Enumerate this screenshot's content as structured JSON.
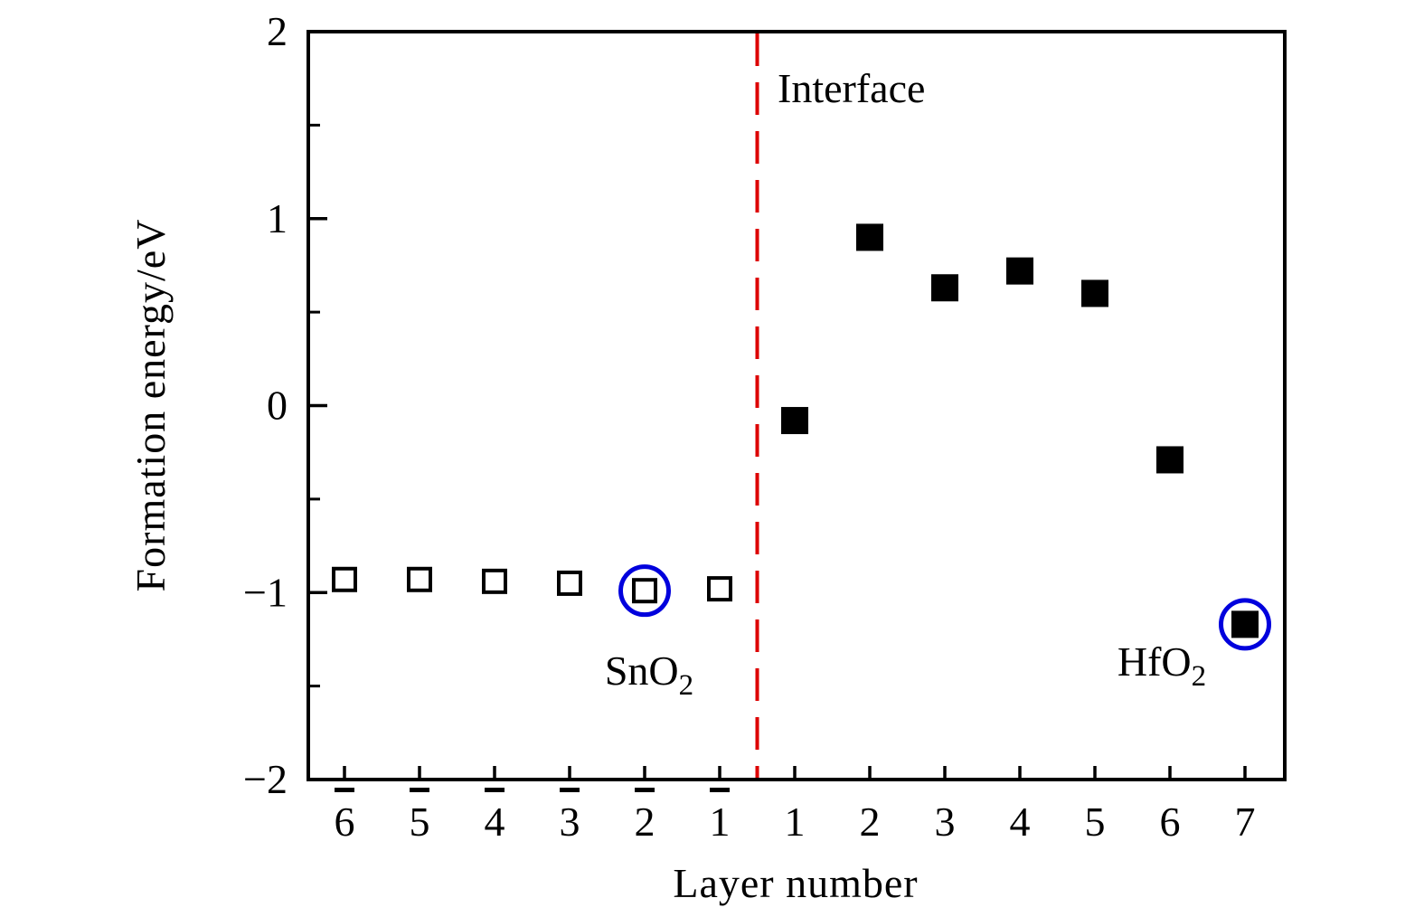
{
  "chart_data": {
    "type": "scatter",
    "title": "",
    "xlabel": "Layer number",
    "ylabel": "Formation energy/eV",
    "ylim": [
      -2,
      2
    ],
    "xlim_layers": [
      -6,
      7
    ],
    "grid": "off",
    "legend": "none",
    "axis_color": "#000000",
    "y_major_ticks": [
      {
        "value": 2,
        "label": "2"
      },
      {
        "value": 1,
        "label": "1"
      },
      {
        "value": 0,
        "label": "0"
      },
      {
        "value": -1,
        "label": "−1"
      },
      {
        "value": -2,
        "label": "−2"
      }
    ],
    "y_minor_ticks": [
      1.5,
      0.5,
      -0.5,
      -1.5
    ],
    "x_ticks": [
      {
        "layer": -6,
        "label": "6",
        "overbar": true
      },
      {
        "layer": -5,
        "label": "5",
        "overbar": true
      },
      {
        "layer": -4,
        "label": "4",
        "overbar": true
      },
      {
        "layer": -3,
        "label": "3",
        "overbar": true
      },
      {
        "layer": -2,
        "label": "2",
        "overbar": true
      },
      {
        "layer": -1,
        "label": "1",
        "overbar": true
      },
      {
        "layer": 1,
        "label": "1",
        "overbar": false
      },
      {
        "layer": 2,
        "label": "2",
        "overbar": false
      },
      {
        "layer": 3,
        "label": "3",
        "overbar": false
      },
      {
        "layer": 4,
        "label": "4",
        "overbar": false
      },
      {
        "layer": 5,
        "label": "5",
        "overbar": false
      },
      {
        "layer": 6,
        "label": "6",
        "overbar": false
      },
      {
        "layer": 7,
        "label": "7",
        "overbar": false
      }
    ],
    "interface_line": {
      "label": "Interface",
      "color": "#dd0000",
      "x_position": 0,
      "style": "dashed"
    },
    "highlight_color": "#0000dd",
    "series": [
      {
        "name": "SnO2",
        "label_main": "SnO",
        "label_sub": "2",
        "marker": "open-square",
        "marker_color": "#000000",
        "points": [
          {
            "layer": -6,
            "energy": -0.93
          },
          {
            "layer": -5,
            "energy": -0.93
          },
          {
            "layer": -4,
            "energy": -0.94
          },
          {
            "layer": -3,
            "energy": -0.95
          },
          {
            "layer": -2,
            "energy": -0.99
          },
          {
            "layer": -1,
            "energy": -0.98
          }
        ],
        "highlighted_layer": -2
      },
      {
        "name": "HfO2",
        "label_main": "HfO",
        "label_sub": "2",
        "marker": "filled-square",
        "marker_color": "#000000",
        "points": [
          {
            "layer": 1,
            "energy": -0.08
          },
          {
            "layer": 2,
            "energy": 0.9
          },
          {
            "layer": 3,
            "energy": 0.63
          },
          {
            "layer": 4,
            "energy": 0.72
          },
          {
            "layer": 5,
            "energy": 0.6
          },
          {
            "layer": 6,
            "energy": -0.29
          },
          {
            "layer": 7,
            "energy": -1.17
          }
        ],
        "highlighted_layer": 7
      }
    ]
  }
}
